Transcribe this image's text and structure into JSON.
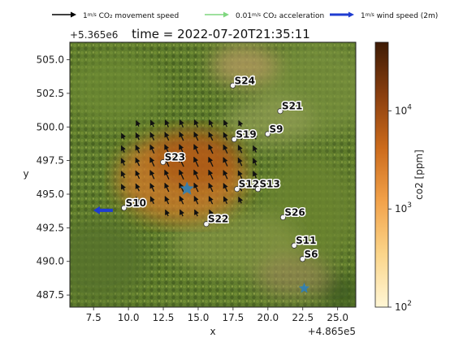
{
  "chart_data": {
    "type": "map-quiver",
    "title": "time = 2022-07-20T21:35:11",
    "xlabel": "x",
    "ylabel": "y",
    "x_offset_label": "+4.865e5",
    "y_offset_label": "+5.365e6",
    "xlim": [
      5.8,
      26.3
    ],
    "ylim": [
      486.6,
      506.3
    ],
    "x_ticks": [
      "7.5",
      "10.0",
      "12.5",
      "15.0",
      "17.5",
      "20.0",
      "22.5",
      "25.0"
    ],
    "x_tick_values": [
      7.5,
      10.0,
      12.5,
      15.0,
      17.5,
      20.0,
      22.5,
      25.0
    ],
    "y_ticks": [
      "487.5",
      "490.0",
      "492.5",
      "495.0",
      "497.5",
      "500.0",
      "502.5",
      "505.0"
    ],
    "y_tick_values": [
      487.5,
      490.0,
      492.5,
      495.0,
      497.5,
      500.0,
      502.5,
      505.0
    ],
    "legend": [
      {
        "label_prefix": "1",
        "label_frac": "m/s",
        "label_suffix": " CO₂ movement speed",
        "color": "#000000"
      },
      {
        "label_prefix": "0.01",
        "label_frac": "m/s",
        "label_suffix": " CO₂ acceleration",
        "color": "#7fd67f"
      },
      {
        "label_prefix": "1",
        "label_frac": "m/s",
        "label_suffix": " wind speed (2m)",
        "color": "#1f3cd0"
      }
    ],
    "colorbar": {
      "label": "co2 [ppm]",
      "scale": "log",
      "range": [
        100,
        50000
      ],
      "ticks": [
        {
          "base": "10",
          "exp": "2",
          "value": 100
        },
        {
          "base": "10",
          "exp": "3",
          "value": 1000
        },
        {
          "base": "10",
          "exp": "4",
          "value": 10000
        }
      ],
      "colors": [
        "#fff6d5",
        "#fbd58a",
        "#f2a24a",
        "#cc6b1c",
        "#8a3f0f",
        "#3e1b05"
      ]
    },
    "sensors": [
      {
        "name": "S24",
        "x": 17.6,
        "y": 503.2
      },
      {
        "name": "S21",
        "x": 21.0,
        "y": 501.3
      },
      {
        "name": "S19",
        "x": 17.7,
        "y": 499.2
      },
      {
        "name": "S9",
        "x": 20.1,
        "y": 499.6
      },
      {
        "name": "S23",
        "x": 12.6,
        "y": 497.5
      },
      {
        "name": "S12",
        "x": 17.9,
        "y": 495.5
      },
      {
        "name": "S13",
        "x": 19.4,
        "y": 495.5
      },
      {
        "name": "S10",
        "x": 9.8,
        "y": 494.1
      },
      {
        "name": "S26",
        "x": 21.2,
        "y": 493.4
      },
      {
        "name": "S22",
        "x": 15.7,
        "y": 492.9
      },
      {
        "name": "S11",
        "x": 22.0,
        "y": 491.3
      },
      {
        "name": "S6",
        "x": 22.6,
        "y": 490.3
      }
    ],
    "stars": [
      {
        "x": 14.2,
        "y": 495.4,
        "size": "large"
      },
      {
        "x": 22.6,
        "y": 488.0,
        "size": "small"
      }
    ],
    "wind": {
      "x": 8.3,
      "y": 493.8,
      "u": -1.0,
      "v": 0.0
    },
    "quiver_grid": {
      "x_start": 9.6,
      "x_step": 1.05,
      "nx": 11,
      "y_start": 493.6,
      "y_step": 0.95,
      "ny": 9,
      "angle_deg": 115
    },
    "co2_plume": [
      {
        "x": 13.8,
        "y": 496.2,
        "rx": 4.6,
        "ry": 3.3,
        "ppm": 3000
      },
      {
        "x": 14.8,
        "y": 497.6,
        "rx": 3.2,
        "ry": 2.2,
        "ppm": 8000
      }
    ]
  }
}
